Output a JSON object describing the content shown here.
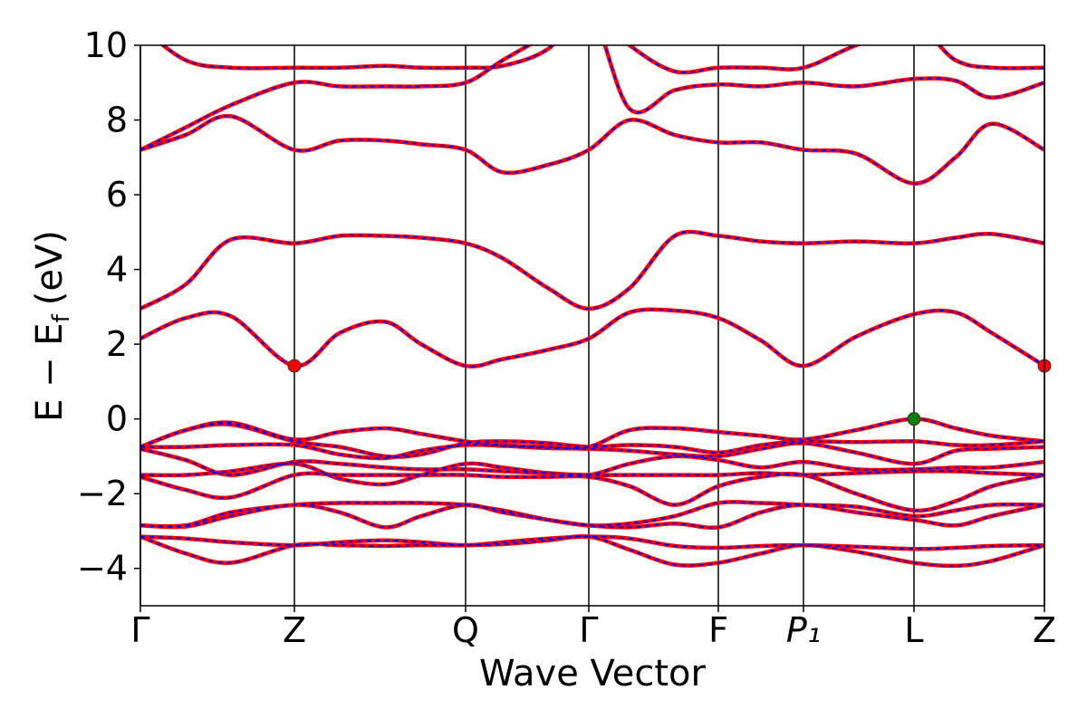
{
  "chart_data": {
    "type": "band",
    "xlabel": "Wave Vector",
    "ylabel": {
      "main": "E − E",
      "sub": "f",
      "unit": "(eV)"
    },
    "xlim": [
      0,
      9.98
    ],
    "ylim": [
      -5,
      10
    ],
    "xticks": [
      {
        "value": 0,
        "label": "Γ"
      },
      {
        "value": 1.7,
        "label": "Z"
      },
      {
        "value": 3.59,
        "label": "Q"
      },
      {
        "value": 4.95,
        "label": "Γ"
      },
      {
        "value": 6.38,
        "label": "F"
      },
      {
        "value": 7.32,
        "label": "P₁"
      },
      {
        "value": 8.54,
        "label": "L"
      },
      {
        "value": 9.98,
        "label": "Z"
      }
    ],
    "yticks": [
      {
        "value": -4,
        "label": "−4"
      },
      {
        "value": -2,
        "label": "−2"
      },
      0,
      2,
      4,
      6,
      8,
      10
    ],
    "x": [
      0,
      0.5,
      1.0,
      1.7,
      2.2,
      2.7,
      3.1,
      3.59,
      4.0,
      4.5,
      4.95,
      5.4,
      5.9,
      6.38,
      6.85,
      7.32,
      7.9,
      8.54,
      9.0,
      9.4,
      9.98
    ],
    "line_colors": [
      "#ff0000",
      "#0000ff"
    ],
    "bands": [
      [
        -3.15,
        -3.6,
        -3.85,
        -3.38,
        -3.38,
        -3.4,
        -3.38,
        -3.38,
        -3.35,
        -3.25,
        -3.15,
        -3.5,
        -3.9,
        -3.85,
        -3.6,
        -3.38,
        -3.55,
        -3.85,
        -3.93,
        -3.8,
        -3.38
      ],
      [
        -3.15,
        -3.2,
        -3.3,
        -3.38,
        -3.3,
        -3.25,
        -3.3,
        -3.38,
        -3.3,
        -3.2,
        -3.15,
        -3.2,
        -3.4,
        -3.45,
        -3.4,
        -3.38,
        -3.42,
        -3.48,
        -3.45,
        -3.4,
        -3.38
      ],
      [
        -2.85,
        -2.88,
        -2.6,
        -2.3,
        -2.5,
        -2.9,
        -2.6,
        -2.3,
        -2.5,
        -2.7,
        -2.85,
        -2.9,
        -2.8,
        -2.9,
        -2.5,
        -2.3,
        -2.5,
        -2.7,
        -2.85,
        -2.6,
        -2.3
      ],
      [
        -2.85,
        -2.85,
        -2.5,
        -2.3,
        -2.25,
        -2.25,
        -2.25,
        -2.3,
        -2.45,
        -2.7,
        -2.85,
        -2.8,
        -2.6,
        -2.25,
        -2.25,
        -2.3,
        -2.35,
        -2.6,
        -2.45,
        -2.3,
        -2.3
      ],
      [
        -1.55,
        -1.9,
        -2.1,
        -1.5,
        -1.5,
        -1.5,
        -1.5,
        -1.5,
        -1.55,
        -1.55,
        -1.55,
        -1.8,
        -2.3,
        -1.8,
        -1.55,
        -1.5,
        -2.0,
        -2.45,
        -2.2,
        -1.8,
        -1.5
      ],
      [
        -1.5,
        -1.5,
        -1.4,
        -1.2,
        -1.6,
        -1.75,
        -1.5,
        -1.2,
        -1.3,
        -1.45,
        -1.5,
        -1.5,
        -1.5,
        -1.5,
        -1.45,
        -1.5,
        -1.45,
        -1.4,
        -1.4,
        -1.45,
        -1.5
      ],
      [
        -0.8,
        -1.1,
        -1.5,
        -1.15,
        -1.2,
        -1.3,
        -1.35,
        -1.35,
        -1.4,
        -1.45,
        -1.5,
        -1.2,
        -1.0,
        -1.1,
        -1.3,
        -1.15,
        -1.35,
        -1.35,
        -1.3,
        -1.3,
        -1.15
      ],
      [
        -0.75,
        -0.75,
        -0.7,
        -0.7,
        -0.95,
        -1.05,
        -0.85,
        -0.7,
        -0.72,
        -0.78,
        -0.8,
        -0.85,
        -0.95,
        -1.0,
        -0.8,
        -0.65,
        -0.9,
        -1.2,
        -0.85,
        -0.8,
        -0.75
      ],
      [
        -0.75,
        -0.3,
        -0.15,
        -0.6,
        -0.75,
        -1.0,
        -0.95,
        -0.65,
        -0.6,
        -0.65,
        -0.75,
        -0.7,
        -0.75,
        -0.9,
        -0.7,
        -0.6,
        -0.62,
        -0.6,
        -0.7,
        -0.7,
        -0.6
      ],
      [
        -0.75,
        -0.3,
        -0.1,
        -0.55,
        -0.35,
        -0.25,
        -0.4,
        -0.6,
        -0.7,
        -0.75,
        -0.75,
        -0.3,
        -0.25,
        -0.35,
        -0.45,
        -0.55,
        -0.3,
        0,
        -0.25,
        -0.45,
        -0.6
      ],
      [
        2.15,
        2.7,
        2.75,
        1.42,
        2.3,
        2.6,
        2.0,
        1.42,
        1.6,
        1.85,
        2.15,
        2.85,
        2.9,
        2.7,
        2.1,
        1.42,
        2.2,
        2.8,
        2.85,
        2.3,
        1.42
      ],
      [
        2.95,
        3.6,
        4.8,
        4.7,
        4.9,
        4.9,
        4.85,
        4.7,
        4.3,
        3.5,
        2.95,
        3.5,
        4.9,
        4.9,
        4.75,
        4.7,
        4.75,
        4.7,
        4.85,
        4.95,
        4.7
      ],
      [
        7.2,
        7.6,
        8.1,
        7.2,
        7.45,
        7.45,
        7.35,
        7.2,
        6.6,
        6.8,
        7.2,
        8.0,
        7.6,
        7.4,
        7.4,
        7.2,
        7.1,
        6.3,
        7.0,
        7.9,
        7.2
      ],
      [
        7.2,
        7.8,
        8.4,
        9.0,
        8.9,
        8.9,
        8.9,
        9.0,
        9.6,
        10.3,
        11,
        8.3,
        8.8,
        8.95,
        8.9,
        9.0,
        8.9,
        9.1,
        9.05,
        8.6,
        9.0
      ],
      [
        10.5,
        9.6,
        9.4,
        9.4,
        9.4,
        9.45,
        9.4,
        9.4,
        9.45,
        9.9,
        11,
        10.0,
        9.3,
        9.4,
        9.4,
        9.4,
        10.0,
        10.5,
        9.6,
        9.4,
        9.4
      ]
    ],
    "points": [
      {
        "x": 1.7,
        "y": 1.42,
        "color": "#ff0000"
      },
      {
        "x": 9.98,
        "y": 1.42,
        "color": "#ff0000"
      },
      {
        "x": 8.54,
        "y": 0,
        "color": "#008000"
      }
    ]
  }
}
